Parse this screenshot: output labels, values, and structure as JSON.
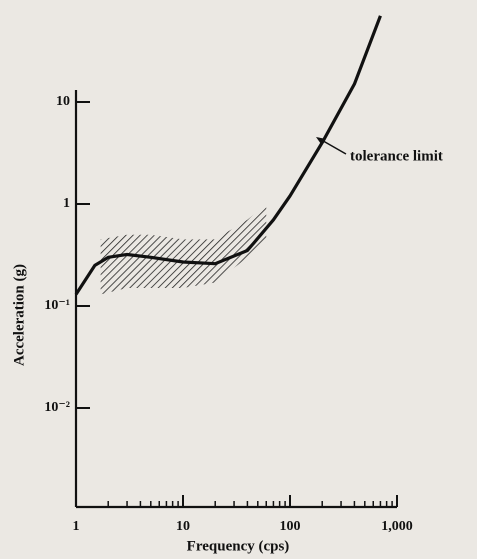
{
  "chart_data": {
    "type": "line",
    "log_x": true,
    "log_y": true,
    "xlabel": "Frequency (cps)",
    "ylabel": "Acceleration (g)",
    "xlim": [
      1,
      1000
    ],
    "ylim": [
      0.001,
      100
    ],
    "xticks": [
      1,
      10,
      100,
      {
        "value": 1000,
        "label": "1,000"
      }
    ],
    "xminorticks": [
      2,
      3,
      4,
      5,
      6,
      7,
      8,
      9,
      20,
      30,
      40,
      50,
      60,
      70,
      80,
      90,
      200,
      300,
      400,
      500,
      600,
      700,
      800,
      900
    ],
    "yticks": [
      {
        "value": 0.01,
        "label": "10⁻²"
      },
      {
        "value": 0.1,
        "label": "10⁻¹"
      },
      1,
      10
    ],
    "series": [
      {
        "color": "#111111",
        "x": [
          1,
          1.5,
          2,
          3,
          5,
          10,
          20,
          40,
          70,
          100,
          200,
          400,
          700
        ],
        "values": [
          0.13,
          0.25,
          0.3,
          0.32,
          0.3,
          0.27,
          0.26,
          0.35,
          0.7,
          1.2,
          4,
          15,
          70
        ]
      }
    ],
    "band": {
      "x": [
        1.7,
        3,
        5,
        10,
        20,
        40,
        60
      ],
      "lower": [
        0.13,
        0.15,
        0.15,
        0.15,
        0.17,
        0.3,
        0.45
      ],
      "upper": [
        0.45,
        0.5,
        0.5,
        0.45,
        0.45,
        0.7,
        1.0
      ]
    },
    "annotation": "tolerance limit"
  }
}
